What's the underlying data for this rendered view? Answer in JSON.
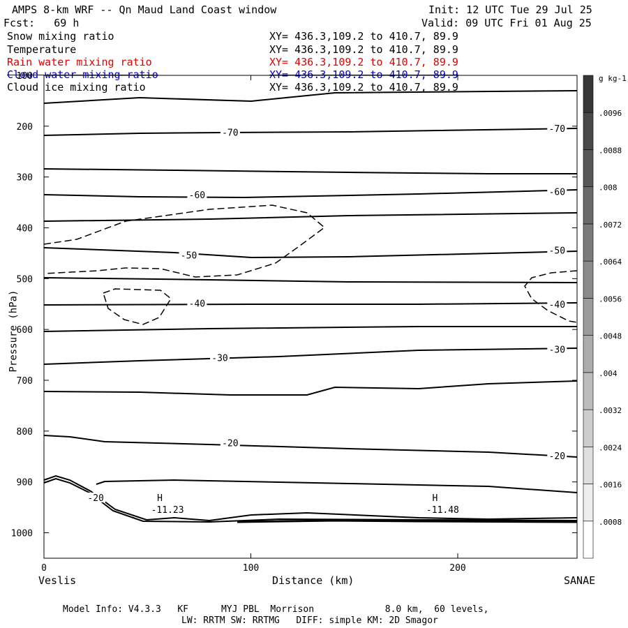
{
  "header": {
    "title": "AMPS 8-km WRF -- Qn Maud Land Coast window",
    "init": "Init: 12 UTC Tue 29 Jul 25",
    "fcst": "Fcst:   69 h",
    "valid": "Valid: 09 UTC Fri 01 Aug 25"
  },
  "fields": [
    {
      "name": "Snow mixing ratio",
      "xy": "XY= 436.3,109.2 to 410.7, 89.9",
      "color": "#000000"
    },
    {
      "name": "Temperature",
      "xy": "XY= 436.3,109.2 to 410.7, 89.9",
      "color": "#000000"
    },
    {
      "name": "Rain water mixing ratio",
      "xy": "XY= 436.3,109.2 to 410.7, 89.9",
      "color": "#e00000"
    },
    {
      "name": "Cloud water mixing ratio",
      "xy": "XY= 436.3,109.2 to 410.7, 89.9",
      "color": "#0000cc"
    },
    {
      "name": "Cloud ice mixing ratio",
      "xy": "XY= 436.3,109.2 to 410.7, 89.9",
      "color": "#000000"
    }
  ],
  "footer": {
    "line1": "Model Info: V4.3.3   KF      MYJ PBL  Morrison             8.0 km,  60 levels,",
    "line2": "LW: RRTM SW: RRTMG   DIFF: simple KM: 2D Smagor"
  },
  "chart_data": {
    "type": "line",
    "ylabel": "Pressure (hPa)",
    "xlabel": "Distance (km)",
    "left_endpoint": "Veslis",
    "right_endpoint": "SANAE",
    "xlim": [
      0,
      258
    ],
    "ylim": [
      1050,
      100
    ],
    "x_ticks": [
      0,
      100,
      200
    ],
    "y_ticks": [
      100,
      200,
      300,
      400,
      500,
      600,
      700,
      800,
      900,
      1000
    ],
    "colorbar": {
      "unit": "g kg-1",
      "levels": [
        "0.0008",
        "0.0016",
        "0.0024",
        "0.0032",
        "0.004",
        "0.0048",
        "0.0056",
        "0.0064",
        "0.0072",
        "0.008",
        "0.0088",
        "0.0096"
      ],
      "labels": [
        ".0008",
        ".0016",
        ".0024",
        ".0032",
        ".004",
        ".0048",
        ".0056",
        ".0064",
        ".0072",
        ".008",
        ".0088",
        ".0096"
      ]
    },
    "isotherm_labels": [
      {
        "text": "-70",
        "x": 90,
        "p": 213
      },
      {
        "text": "-70",
        "x": 248,
        "p": 206
      },
      {
        "text": "-60",
        "x": 74,
        "p": 336
      },
      {
        "text": "-60",
        "x": 248,
        "p": 330
      },
      {
        "text": "-50",
        "x": 70,
        "p": 455
      },
      {
        "text": "-50",
        "x": 248,
        "p": 445
      },
      {
        "text": "-40",
        "x": 74,
        "p": 550
      },
      {
        "text": "-40",
        "x": 248,
        "p": 552
      },
      {
        "text": "-30",
        "x": 85,
        "p": 657
      },
      {
        "text": "-30",
        "x": 248,
        "p": 640
      },
      {
        "text": "-20",
        "x": 90,
        "p": 824
      },
      {
        "text": "-20",
        "x": 248,
        "p": 850
      },
      {
        "text": "-20",
        "x": 25,
        "p": 932
      }
    ],
    "highs": [
      {
        "letter": "H",
        "value": "-11.23",
        "x": 55,
        "p": 954
      },
      {
        "letter": "H",
        "value": "-11.48",
        "x": 188,
        "p": 954
      }
    ]
  }
}
